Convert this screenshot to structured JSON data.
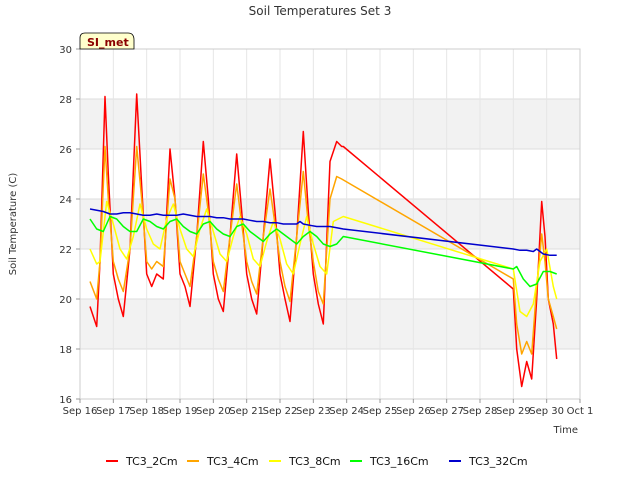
{
  "chart_data": {
    "type": "line",
    "title": "Soil Temperatures Set 3",
    "xlabel": "Time",
    "ylabel": "Soil Temperature (C)",
    "site_badge": "SI_met",
    "xlim": [
      16,
      31
    ],
    "ylim": [
      16,
      30
    ],
    "x_ticks": [
      {
        "x": 16,
        "label": "Sep 16"
      },
      {
        "x": 17,
        "label": "Sep 17"
      },
      {
        "x": 18,
        "label": "Sep 18"
      },
      {
        "x": 19,
        "label": "Sep 19"
      },
      {
        "x": 20,
        "label": "Sep 20"
      },
      {
        "x": 21,
        "label": "Sep 21"
      },
      {
        "x": 22,
        "label": "Sep 22"
      },
      {
        "x": 23,
        "label": "Sep 23"
      },
      {
        "x": 24,
        "label": "Sep 24"
      },
      {
        "x": 25,
        "label": "Sep 25"
      },
      {
        "x": 26,
        "label": "Sep 26"
      },
      {
        "x": 27,
        "label": "Sep 27"
      },
      {
        "x": 28,
        "label": "Sep 28"
      },
      {
        "x": 29,
        "label": "Sep 29"
      },
      {
        "x": 30,
        "label": "Sep 30"
      },
      {
        "x": 31,
        "label": "Oct 1"
      }
    ],
    "y_ticks": [
      16,
      18,
      20,
      22,
      24,
      26,
      28,
      30
    ],
    "bands": [
      [
        18,
        20
      ],
      [
        22,
        24
      ],
      [
        26,
        28
      ]
    ],
    "series": [
      {
        "name": "TC3_2Cm",
        "color": "#ff0000",
        "x": [
          16.3,
          16.5,
          16.6,
          16.75,
          16.85,
          17.0,
          17.15,
          17.3,
          17.5,
          17.7,
          17.85,
          18.0,
          18.15,
          18.3,
          18.5,
          18.7,
          18.85,
          19.0,
          19.15,
          19.3,
          19.5,
          19.7,
          19.85,
          20.0,
          20.15,
          20.3,
          20.5,
          20.7,
          20.85,
          21.0,
          21.15,
          21.3,
          21.5,
          21.7,
          21.85,
          22.0,
          22.15,
          22.3,
          22.5,
          22.7,
          22.85,
          23.0,
          23.15,
          23.3,
          23.5,
          23.7,
          23.85,
          23.9,
          29.0,
          29.1,
          29.25,
          29.4,
          29.55,
          29.7,
          29.85,
          29.95,
          30.05,
          30.2,
          30.3
        ],
        "y": [
          19.7,
          18.9,
          21.5,
          28.1,
          25.0,
          21.0,
          20.0,
          19.3,
          22.0,
          28.2,
          24.5,
          21.0,
          20.5,
          21.0,
          20.8,
          26.0,
          24.0,
          21.0,
          20.5,
          19.7,
          22.5,
          26.3,
          24.0,
          21.0,
          20.0,
          19.5,
          22.5,
          25.8,
          23.5,
          21.0,
          20.0,
          19.4,
          22.5,
          25.6,
          23.5,
          21.0,
          20.0,
          19.1,
          22.5,
          26.7,
          23.5,
          21.0,
          19.8,
          19.0,
          25.5,
          26.3,
          26.1,
          26.1,
          20.4,
          18.0,
          16.5,
          17.5,
          16.8,
          20.0,
          23.9,
          22.5,
          20.0,
          19.0,
          17.6
        ]
      },
      {
        "name": "TC3_4Cm",
        "color": "#ffa500",
        "x": [
          16.3,
          16.5,
          16.6,
          16.75,
          16.85,
          17.0,
          17.15,
          17.3,
          17.5,
          17.7,
          17.85,
          18.0,
          18.15,
          18.3,
          18.5,
          18.7,
          18.85,
          19.0,
          19.15,
          19.3,
          19.5,
          19.7,
          19.85,
          20.0,
          20.15,
          20.3,
          20.5,
          20.7,
          20.85,
          21.0,
          21.15,
          21.3,
          21.5,
          21.7,
          21.85,
          22.0,
          22.15,
          22.3,
          22.5,
          22.7,
          22.85,
          23.0,
          23.15,
          23.3,
          23.5,
          23.7,
          23.85,
          29.0,
          29.1,
          29.25,
          29.4,
          29.55,
          29.7,
          29.85,
          29.95,
          30.05,
          30.2,
          30.3
        ],
        "y": [
          20.7,
          20.0,
          21.5,
          26.1,
          24.0,
          21.5,
          20.8,
          20.3,
          22.0,
          26.1,
          24.0,
          21.5,
          21.2,
          21.5,
          21.3,
          24.8,
          24.0,
          21.5,
          21.0,
          20.5,
          22.5,
          25.0,
          23.5,
          21.5,
          20.8,
          20.3,
          22.5,
          24.6,
          23.0,
          21.5,
          20.7,
          20.2,
          22.5,
          24.4,
          23.0,
          21.5,
          20.5,
          19.9,
          22.5,
          25.1,
          23.0,
          21.5,
          20.3,
          19.8,
          24.0,
          24.9,
          24.8,
          20.8,
          19.0,
          17.8,
          18.3,
          17.8,
          20.5,
          22.6,
          21.5,
          20.0,
          19.3,
          18.8
        ]
      },
      {
        "name": "TC3_8Cm",
        "color": "#ffff00",
        "x": [
          16.3,
          16.5,
          16.6,
          16.8,
          17.0,
          17.2,
          17.4,
          17.6,
          17.8,
          18.0,
          18.2,
          18.4,
          18.6,
          18.8,
          19.0,
          19.2,
          19.4,
          19.6,
          19.8,
          20.0,
          20.2,
          20.4,
          20.6,
          20.8,
          21.0,
          21.2,
          21.4,
          21.6,
          21.8,
          22.0,
          22.2,
          22.4,
          22.6,
          22.8,
          23.0,
          23.2,
          23.4,
          23.6,
          23.9,
          29.0,
          29.2,
          29.4,
          29.6,
          29.8,
          30.0,
          30.2,
          30.3
        ],
        "y": [
          22.0,
          21.4,
          21.5,
          23.9,
          23.0,
          22.0,
          21.6,
          22.5,
          23.8,
          22.8,
          22.2,
          22.0,
          23.2,
          23.8,
          22.8,
          22.0,
          21.7,
          22.8,
          23.6,
          22.7,
          21.8,
          21.5,
          22.5,
          23.3,
          22.6,
          21.6,
          21.3,
          22.3,
          23.1,
          22.4,
          21.4,
          21.0,
          22.2,
          23.3,
          22.2,
          21.3,
          21.0,
          23.1,
          23.3,
          21.2,
          19.5,
          19.3,
          19.8,
          21.5,
          22.0,
          20.5,
          20.0
        ]
      },
      {
        "name": "TC3_16Cm",
        "color": "#00ff00",
        "x": [
          16.3,
          16.5,
          16.7,
          16.9,
          17.1,
          17.3,
          17.5,
          17.7,
          17.9,
          18.1,
          18.3,
          18.5,
          18.7,
          18.9,
          19.1,
          19.3,
          19.5,
          19.7,
          19.9,
          20.1,
          20.3,
          20.5,
          20.7,
          20.9,
          21.1,
          21.3,
          21.5,
          21.7,
          21.9,
          22.1,
          22.3,
          22.5,
          22.7,
          22.9,
          23.1,
          23.3,
          23.5,
          23.7,
          23.9,
          29.0,
          29.1,
          29.3,
          29.5,
          29.7,
          29.9,
          30.1,
          30.3
        ],
        "y": [
          23.2,
          22.8,
          22.7,
          23.3,
          23.2,
          22.9,
          22.7,
          22.7,
          23.2,
          23.1,
          22.9,
          22.8,
          23.1,
          23.2,
          22.9,
          22.7,
          22.6,
          23.0,
          23.1,
          22.8,
          22.6,
          22.5,
          22.9,
          23.0,
          22.7,
          22.5,
          22.3,
          22.6,
          22.8,
          22.6,
          22.4,
          22.2,
          22.5,
          22.7,
          22.5,
          22.2,
          22.1,
          22.2,
          22.5,
          21.2,
          21.3,
          20.8,
          20.5,
          20.6,
          21.1,
          21.1,
          21.0
        ]
      },
      {
        "name": "TC3_32Cm",
        "color": "#0000cd",
        "x": [
          16.3,
          16.5,
          16.7,
          16.9,
          17.1,
          17.3,
          17.5,
          17.7,
          17.9,
          18.1,
          18.3,
          18.5,
          18.7,
          18.9,
          19.1,
          19.3,
          19.5,
          19.7,
          19.9,
          20.1,
          20.3,
          20.5,
          20.7,
          20.9,
          21.1,
          21.3,
          21.5,
          21.7,
          21.9,
          22.1,
          22.3,
          22.5,
          22.6,
          22.7,
          22.9,
          23.1,
          23.3,
          23.5,
          23.7,
          23.9,
          29.0,
          29.2,
          29.4,
          29.6,
          29.7,
          29.9,
          30.1,
          30.3
        ],
        "y": [
          23.6,
          23.55,
          23.5,
          23.4,
          23.4,
          23.45,
          23.45,
          23.4,
          23.35,
          23.35,
          23.4,
          23.35,
          23.35,
          23.35,
          23.4,
          23.35,
          23.3,
          23.3,
          23.3,
          23.25,
          23.25,
          23.2,
          23.2,
          23.2,
          23.15,
          23.1,
          23.1,
          23.05,
          23.05,
          23.0,
          23.0,
          23.0,
          23.1,
          23.0,
          22.95,
          22.9,
          22.9,
          22.9,
          22.85,
          22.8,
          22.0,
          21.95,
          21.95,
          21.9,
          22.0,
          21.8,
          21.75,
          21.75
        ]
      }
    ]
  }
}
